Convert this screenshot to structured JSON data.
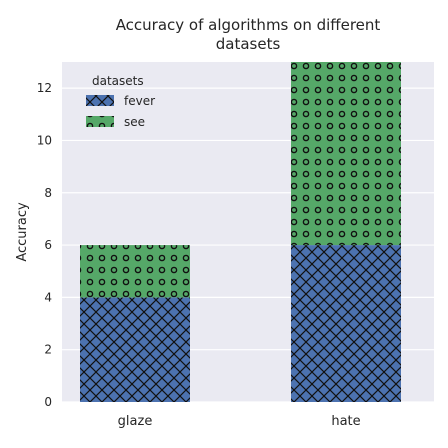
{
  "chart_data": {
    "type": "bar",
    "stacked": true,
    "title": "Accuracy of algorithms on different datasets",
    "xlabel": "",
    "ylabel": "Accuracy",
    "categories": [
      "glaze",
      "hate"
    ],
    "series": [
      {
        "name": "fever",
        "values": [
          4,
          6
        ],
        "color": "#4c72b0",
        "pattern": "crosshatch"
      },
      {
        "name": "see",
        "values": [
          2,
          7
        ],
        "color": "#55a868",
        "pattern": "circles"
      }
    ],
    "ylim": [
      0,
      13
    ],
    "yticks": [
      0,
      2,
      4,
      6,
      8,
      10,
      12
    ],
    "grid": true,
    "background": "#eaeaf2",
    "legend": {
      "title": "datasets",
      "placement": "top-left"
    }
  }
}
